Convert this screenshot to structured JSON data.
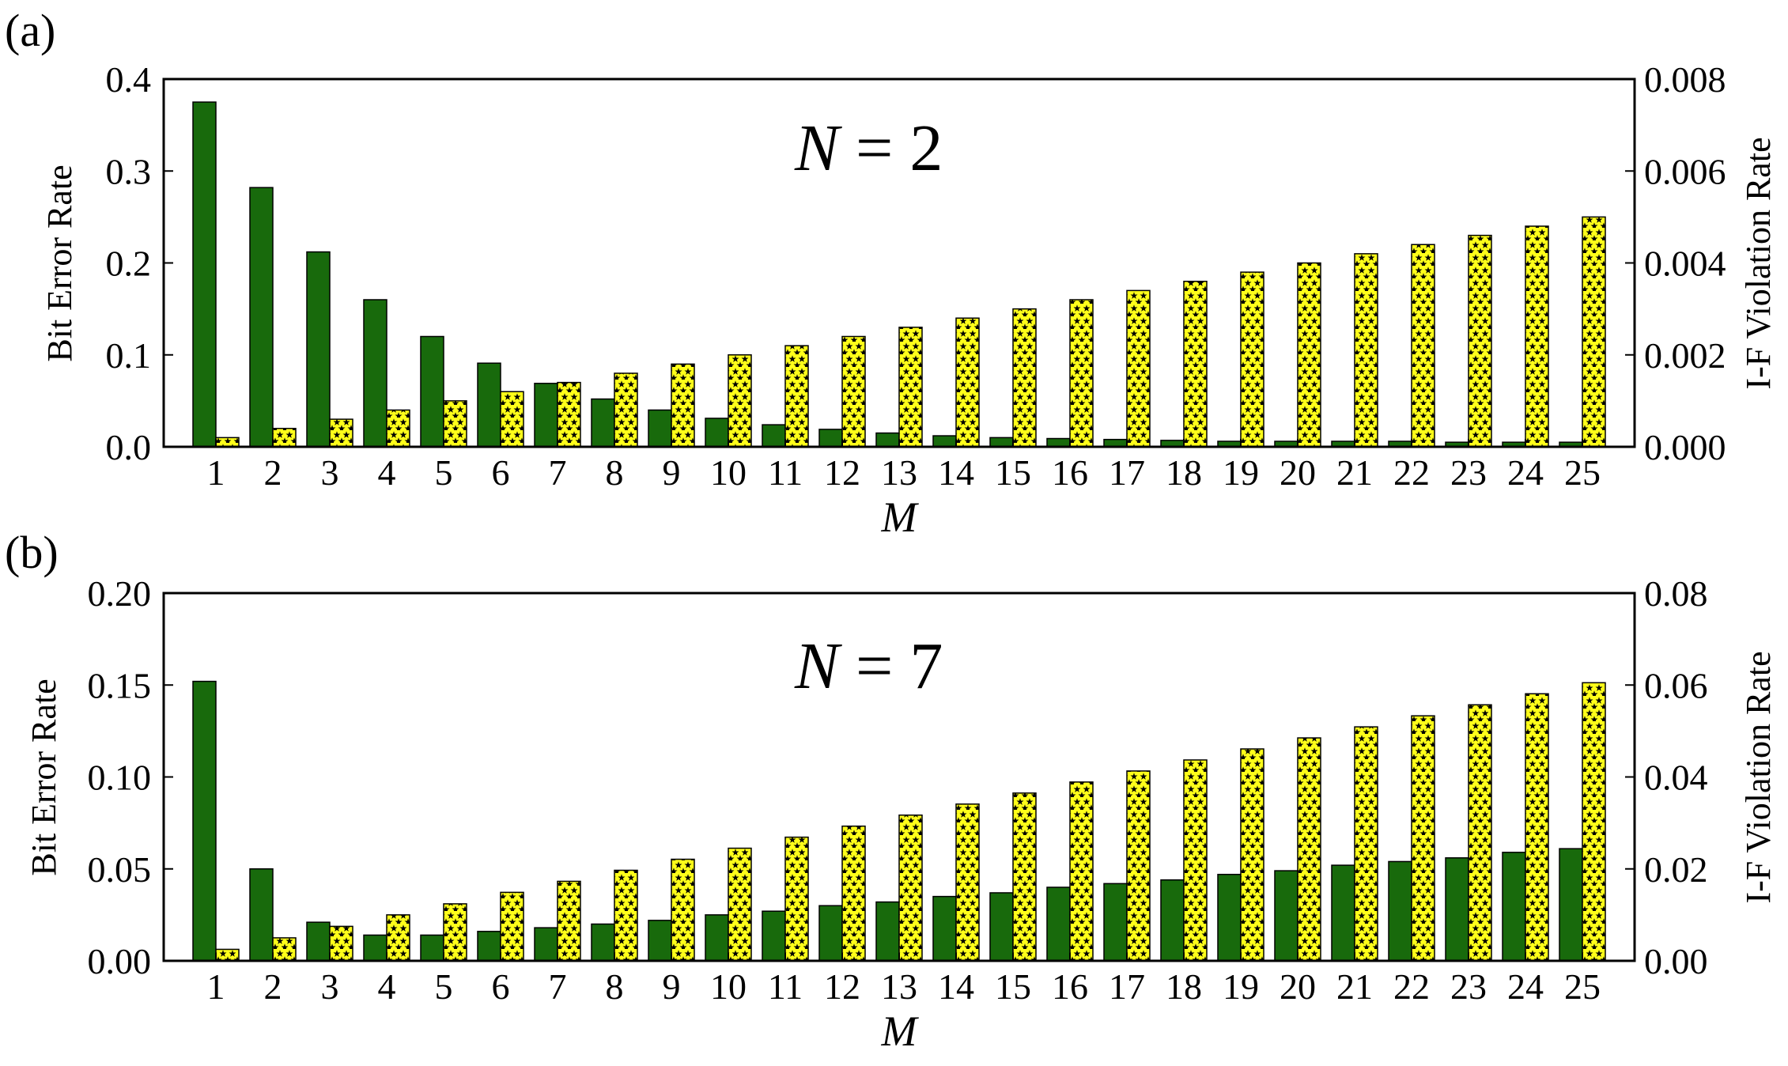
{
  "chart_data": [
    {
      "panel_label": "(a)",
      "type": "bar",
      "annotation": "N = 2",
      "annotation_var": "N",
      "annotation_rest": " = 2",
      "xlabel": "M",
      "ylabel_left": "Bit Error Rate",
      "ylabel_right": "I-F Violation Rate",
      "ylim_left": [
        0,
        0.4
      ],
      "ylim_right": [
        0,
        0.008
      ],
      "yticks_left": [
        "0.0",
        "0.1",
        "0.2",
        "0.3",
        "0.4"
      ],
      "yticks_right": [
        "0.000",
        "0.002",
        "0.004",
        "0.006",
        "0.008"
      ],
      "categories": [
        "1",
        "2",
        "3",
        "4",
        "5",
        "6",
        "7",
        "8",
        "9",
        "10",
        "11",
        "12",
        "13",
        "14",
        "15",
        "16",
        "17",
        "18",
        "19",
        "20",
        "21",
        "22",
        "23",
        "24",
        "25"
      ],
      "grid": false,
      "series": [
        {
          "axis": "left",
          "color": "#186a0c",
          "pattern": "solid",
          "values": [
            0.375,
            0.282,
            0.212,
            0.16,
            0.12,
            0.091,
            0.069,
            0.052,
            0.04,
            0.031,
            0.024,
            0.019,
            0.015,
            0.012,
            0.01,
            0.009,
            0.008,
            0.007,
            0.006,
            0.006,
            0.006,
            0.006,
            0.005,
            0.005,
            0.005
          ]
        },
        {
          "axis": "right",
          "color": "#ffff1a",
          "pattern": "stars",
          "values": [
            0.0002,
            0.0004,
            0.0006,
            0.0008,
            0.001,
            0.0012,
            0.0014,
            0.0016,
            0.0018,
            0.002,
            0.0022,
            0.0024,
            0.0026,
            0.0028,
            0.003,
            0.0032,
            0.0034,
            0.0036,
            0.0038,
            0.004,
            0.0042,
            0.0044,
            0.0046,
            0.0048,
            0.005
          ]
        }
      ]
    },
    {
      "panel_label": "(b)",
      "type": "bar",
      "annotation": "N = 7",
      "annotation_var": "N",
      "annotation_rest": " = 7",
      "xlabel": "M",
      "ylabel_left": "Bit Error Rate",
      "ylabel_right": "I-F Violation Rate",
      "ylim_left": [
        0,
        0.2
      ],
      "ylim_right": [
        0,
        0.08
      ],
      "yticks_left": [
        "0.00",
        "0.05",
        "0.10",
        "0.15",
        "0.20"
      ],
      "yticks_right": [
        "0.00",
        "0.02",
        "0.04",
        "0.06",
        "0.08"
      ],
      "categories": [
        "1",
        "2",
        "3",
        "4",
        "5",
        "6",
        "7",
        "8",
        "9",
        "10",
        "11",
        "12",
        "13",
        "14",
        "15",
        "16",
        "17",
        "18",
        "19",
        "20",
        "21",
        "22",
        "23",
        "24",
        "25"
      ],
      "grid": false,
      "series": [
        {
          "axis": "left",
          "color": "#186a0c",
          "pattern": "solid",
          "values": [
            0.152,
            0.05,
            0.021,
            0.014,
            0.014,
            0.016,
            0.018,
            0.02,
            0.022,
            0.025,
            0.027,
            0.03,
            0.032,
            0.035,
            0.037,
            0.04,
            0.042,
            0.044,
            0.047,
            0.049,
            0.052,
            0.054,
            0.056,
            0.059,
            0.061
          ]
        },
        {
          "axis": "right",
          "color": "#ffff1a",
          "pattern": "stars",
          "values": [
            0.0025,
            0.005,
            0.0075,
            0.01,
            0.0124,
            0.0149,
            0.0173,
            0.0197,
            0.0221,
            0.0245,
            0.0269,
            0.0293,
            0.0317,
            0.0341,
            0.0365,
            0.0389,
            0.0413,
            0.0437,
            0.0461,
            0.0485,
            0.0509,
            0.0533,
            0.0557,
            0.0581,
            0.0605
          ]
        }
      ]
    }
  ]
}
